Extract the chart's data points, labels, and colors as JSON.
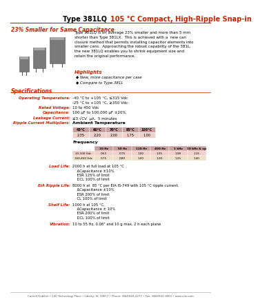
{
  "title_black": "Type 381LQ ",
  "title_red": "105 °C Compact, High-Ripple Snap-in",
  "subtitle": "23% Smaller for Same Capacitance",
  "body_text": "Type 381LQ is on average 23% smaller and more than 5 mm\nshorter than Type 381LX.  This is achieved with a  new can\nclosure method that permits installing capacitor elements into\nsmaller cans.  Approaching the robust capability of the 381L,\nthe new 381LQ enables you to shrink equipment size and\nretain the original performance.",
  "highlights_title": "Highlights",
  "highlights": [
    "New, more capacitance per case",
    "Compare to Type 381L"
  ],
  "specs_title": "Specifications",
  "specs": [
    [
      "Operating Temperature:",
      "-40 °C to +105 °C, ≤315 Vdc\n-25 °C to +105 °C, ≥350 Vdc"
    ],
    [
      "Rated Voltage:",
      "10 to 450 Vdc"
    ],
    [
      "Capacitance:",
      "100 μF to 100,000 μF ±20%"
    ],
    [
      "Leakage Current:",
      "≤3 √CV  μA,  5 minutes"
    ],
    [
      "Ripple Current Multipliers:",
      "Ambient Temperature"
    ]
  ],
  "ambient_headers": [
    "45°C",
    "60°C",
    "70°C",
    "85°C",
    "105°C"
  ],
  "ambient_values": [
    "2.35",
    "2.20",
    "2.00",
    "1.75",
    "1.00"
  ],
  "freq_label": "Frequency",
  "freq_headers": [
    "10 Hz",
    "50 Hz",
    "120 Hz",
    "400 Hz",
    "1 kHz",
    "10 kHz & up"
  ],
  "freq_row1_label": "10-100 Vdc",
  "freq_row1": [
    "0.63",
    "0.75",
    "1.00",
    "1.05",
    "1.08",
    "1.15"
  ],
  "freq_row2_label": "160-450 Vdc",
  "freq_row2": [
    "0.75",
    "0.80",
    "1.00",
    "1.20",
    "1.25",
    "1.40"
  ],
  "load_life_label": "Load Life:",
  "load_life_lines": [
    "2000 h at full load at 105 °C",
    "    ΔCapacitance ±10%",
    "    ESR 125% of limit",
    "    DCL 100% of limit"
  ],
  "eia_label": "EIA Ripple Life:",
  "eia_lines": [
    "8000 h at  85 °C per EIA IS-749 with 105 °C ripple current.",
    "    ΔCapacitance ±10%",
    "    ESR 200% of limit",
    "    CL 100% of limit"
  ],
  "shelf_label": "Shelf Life:",
  "shelf_lines": [
    "1000 h at 105 °C,",
    "    ΔCapacitance ± 10%",
    "    ESR 200% of limit",
    "    DCL 100% of limit"
  ],
  "vibration_label": "Vibration:",
  "vibration_line": "10 to 55 Hz, 0.06\" and 10 g max, 2 h each plane",
  "footer": "Cornell Dubilier • 140 Technology Place • Liberty, SC 29657 • Phone: (864)843-2277 • Fax: (864)843-3800 • www.cde.com",
  "red_color": "#cc2200",
  "table_hdr_bg": "#c8a0a0",
  "table_r1_bg": "#f0d0c8",
  "table_r2_bg": "#f0dfc8",
  "watermark_color": "#ddbbbb"
}
